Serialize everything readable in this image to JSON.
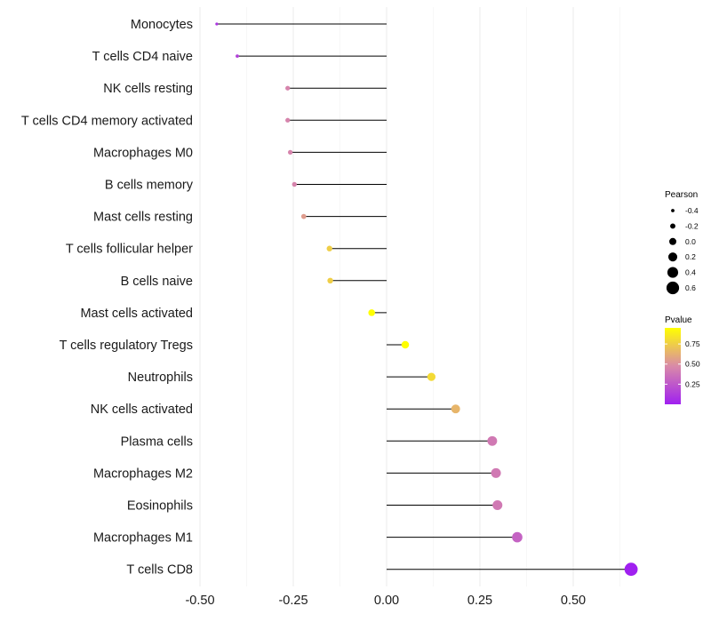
{
  "chart_data": {
    "type": "lollipop",
    "title": "",
    "xlabel": "",
    "ylabel": "",
    "xlim": [
      -0.5,
      0.66
    ],
    "grid": true,
    "legend_position": "right",
    "x_ticks": [
      {
        "value": -0.5,
        "label": "-0.50"
      },
      {
        "value": -0.25,
        "label": "-0.25"
      },
      {
        "value": 0.0,
        "label": "0.00"
      },
      {
        "value": 0.25,
        "label": "0.25"
      },
      {
        "value": 0.5,
        "label": "0.50"
      }
    ],
    "categories": [
      "Monocytes",
      "T cells CD4 naive",
      "NK cells resting",
      "T cells CD4 memory activated",
      "Macrophages M0",
      "B cells memory",
      "Mast cells resting",
      "T cells follicular helper",
      "B cells naive",
      "Mast cells activated",
      "T cells regulatory  Tregs ",
      "Neutrophils",
      "NK cells activated",
      "Plasma cells",
      "Macrophages M2",
      "Eosinophils",
      "Macrophages M1",
      "T cells CD8"
    ],
    "pearson": [
      -0.455,
      -0.4,
      -0.265,
      -0.265,
      -0.258,
      -0.247,
      -0.222,
      -0.153,
      -0.151,
      -0.04,
      0.05,
      0.12,
      0.185,
      0.283,
      0.293,
      0.297,
      0.35,
      0.655
    ],
    "pvalue": [
      0.1,
      0.15,
      0.45,
      0.45,
      0.45,
      0.45,
      0.55,
      0.75,
      0.75,
      0.95,
      0.95,
      0.8,
      0.65,
      0.4,
      0.4,
      0.4,
      0.3,
      0.0
    ],
    "size_legend": {
      "title": "Pearson",
      "values": [
        -0.4,
        -0.2,
        0.0,
        0.2,
        0.4,
        0.6
      ],
      "labels": [
        "-0.4",
        "-0.2",
        "0.0",
        "0.2",
        "0.4",
        "0.6"
      ]
    },
    "color_legend": {
      "title": "Pvalue",
      "range": [
        0.0,
        0.95
      ],
      "ticks": [
        0.25,
        0.5,
        0.75
      ],
      "tick_labels": [
        "0.25",
        "0.50",
        "0.75"
      ],
      "low_color": "#a020f0",
      "mid_color": "#d98aa8",
      "high_color": "#ffff00"
    }
  }
}
